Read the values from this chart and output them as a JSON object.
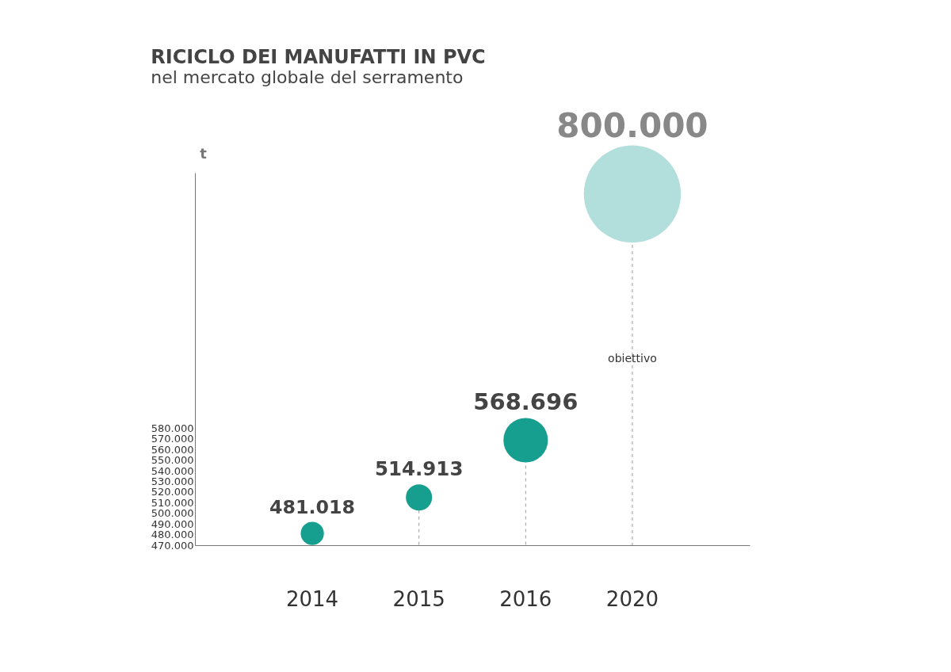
{
  "chart_data": {
    "type": "bubble",
    "title": "RICICLO DEI MANUFATTI IN PVC",
    "subtitle": "nel mercato globale del serramento",
    "ylabel": "t",
    "categories": [
      "2014",
      "2015",
      "2016",
      "2020"
    ],
    "values": [
      481018,
      514913,
      568696,
      800000
    ],
    "sizes": [
      0.057,
      0.073,
      0.21,
      1
    ],
    "colors": [
      "#169e8f",
      "#169e8f",
      "#169e8f",
      "#b2dfdb"
    ],
    "value_labels": [
      "481.018",
      "514.913",
      "568.696",
      "800.000"
    ],
    "annotations": [
      "obiettivo"
    ],
    "ylim": [
      470000,
      820000
    ],
    "yticks": [
      {
        "value": 470000,
        "label": "470.000"
      },
      {
        "value": 480000,
        "label": "480.000"
      },
      {
        "value": 490000,
        "label": "490.000"
      },
      {
        "value": 500000,
        "label": "500.000"
      },
      {
        "value": 510000,
        "label": "510.000"
      },
      {
        "value": 520000,
        "label": "520.000"
      },
      {
        "value": 530000,
        "label": "530.000"
      },
      {
        "value": 540000,
        "label": "540.000"
      },
      {
        "value": 550000,
        "label": "550.000"
      },
      {
        "value": 560000,
        "label": "560.000"
      },
      {
        "value": 570000,
        "label": "570.000"
      },
      {
        "value": 580000,
        "label": "580.000"
      }
    ],
    "grid": "x"
  }
}
